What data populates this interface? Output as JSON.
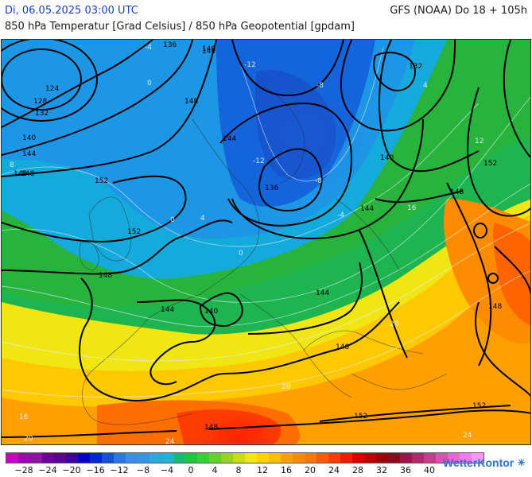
{
  "header": {
    "datetime": "Di, 06.05.2025 03:00 UTC",
    "model": "GFS (NOAA) Do 18 + 105h",
    "parameters": "850 hPa Temperatur [Grad Celsius] / 850 hPa Geopotential [gpdam]"
  },
  "map": {
    "region": "Europe",
    "geopotential_labels": [
      "136",
      "140",
      "124",
      "128",
      "132",
      "140",
      "148",
      "144",
      "148",
      "152",
      "152",
      "140",
      "144",
      "136",
      "132",
      "140",
      "152",
      "148",
      "144",
      "148",
      "144",
      "140",
      "144",
      "148",
      "152",
      "148",
      "152",
      "148",
      "148"
    ],
    "temperature_labels": [
      "-4",
      "-8",
      "-12",
      "0",
      "4",
      "8",
      "12",
      "16",
      "20",
      "24",
      "0",
      "-4",
      "-8",
      "0",
      "4",
      "20",
      "-12",
      "16",
      "20",
      "24"
    ]
  },
  "colorbar": {
    "segments": [
      "#c800c8",
      "#a000b4",
      "#8c14a0",
      "#6e00a0",
      "#5a0096",
      "#3c00a0",
      "#0000c8",
      "#0028d2",
      "#1450dc",
      "#2878e6",
      "#3c8cf0",
      "#3296e6",
      "#28aadc",
      "#1eb4d2",
      "#14be78",
      "#1ec83c",
      "#32d232",
      "#64d228",
      "#96d21e",
      "#c8dc14",
      "#f0e614",
      "#ffd200",
      "#ffbe00",
      "#ffa000",
      "#ff8c00",
      "#ff7800",
      "#ff5a00",
      "#ff3c00",
      "#f01e00",
      "#dc0000",
      "#be0000",
      "#a0000a",
      "#8c0a1e",
      "#a0144b",
      "#b4286e",
      "#c83c8c",
      "#dc50b4",
      "#f064d2",
      "#ff78f0",
      "#ff96ff"
    ],
    "tick_labels": [
      "-28",
      "-24",
      "-20",
      "-16",
      "-12",
      "-8",
      "-4",
      "0",
      "4",
      "8",
      "12",
      "16",
      "20",
      "24",
      "28",
      "32",
      "36",
      "40"
    ]
  },
  "brand": {
    "name": "WetterKontor",
    "icon": "sun-logo-icon"
  }
}
